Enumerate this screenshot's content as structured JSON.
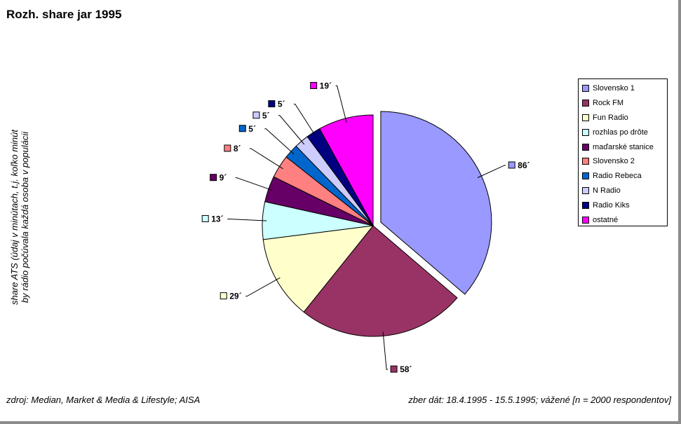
{
  "chart_data": {
    "type": "pie",
    "title": "Rozh. share jar 1995",
    "ylabel_lines": [
      "share ATS (údaj v minútach, t.j. koľko minút",
      "by rádio počúvala každá osoba v populácii"
    ],
    "slices": [
      {
        "name": "Slovensko 1",
        "value": 86,
        "label": "86´",
        "color": "#9999ff",
        "exploded": true
      },
      {
        "name": "Rock FM",
        "value": 58,
        "label": "58´",
        "color": "#993366",
        "exploded": false
      },
      {
        "name": "Fun Radio",
        "value": 29,
        "label": "29´",
        "color": "#ffffcc",
        "exploded": false
      },
      {
        "name": "rozhlas po drôte",
        "value": 13,
        "label": "13´",
        "color": "#ccffff",
        "exploded": false
      },
      {
        "name": "maďarské stanice",
        "value": 9,
        "label": "9´",
        "color": "#660066",
        "exploded": false
      },
      {
        "name": "Slovensko 2",
        "value": 8,
        "label": "8´",
        "color": "#ff8080",
        "exploded": false
      },
      {
        "name": "Radio Rebeca",
        "value": 5,
        "label": "5´",
        "color": "#0066cc",
        "exploded": false
      },
      {
        "name": "N Radio",
        "value": 5,
        "label": "5´",
        "color": "#ccccff",
        "exploded": false
      },
      {
        "name": "Radio Kiks",
        "value": 5,
        "label": "5´",
        "color": "#000080",
        "exploded": false
      },
      {
        "name": "ostatné",
        "value": 19,
        "label": "19´",
        "color": "#ff00ff",
        "exploded": false
      }
    ],
    "legend_position": "right"
  },
  "footer": {
    "source": "zdroj: Median, Market & Media & Lifestyle; AISA",
    "collection": "zber dát: 18.4.1995 - 15.5.1995; vážené [n = 2000 respondentov]"
  }
}
